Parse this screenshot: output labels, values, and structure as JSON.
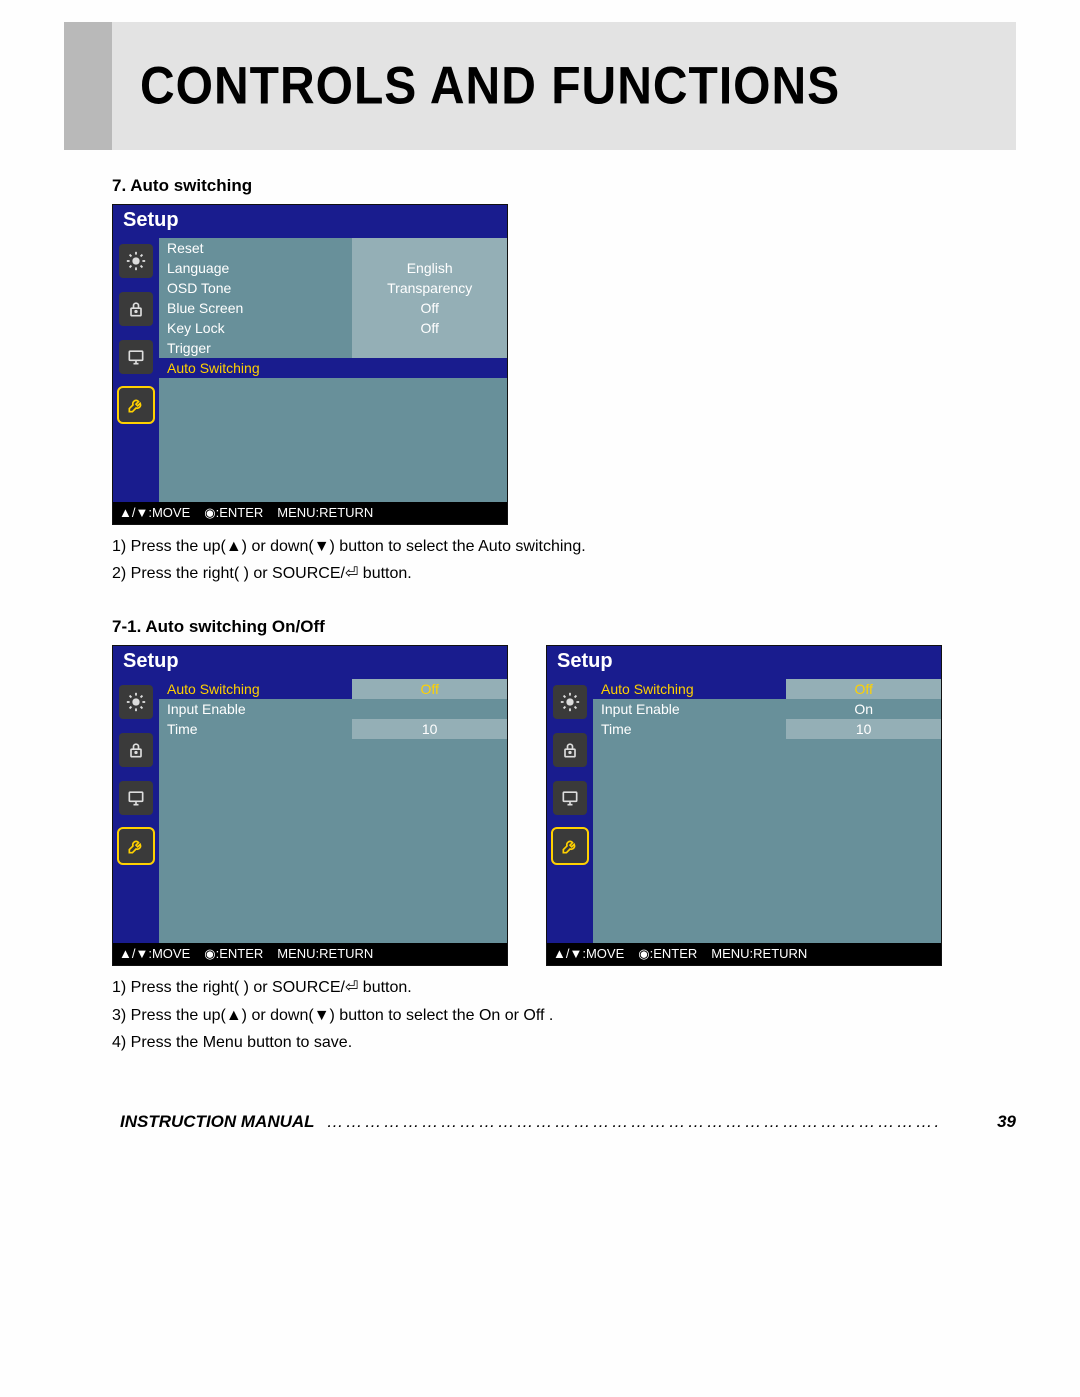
{
  "header": {
    "title": "CONTROLS AND FUNCTIONS"
  },
  "section1": {
    "heading": "7. Auto switching",
    "instructions": [
      "1) Press the up(▲) or down(▼) button to select the Auto switching.",
      "2) Press the right(  ) or SOURCE/⏎   button."
    ]
  },
  "section2": {
    "heading": "7-1. Auto switching On/Off",
    "instructions": [
      "1) Press the right(  ) or SOURCE/⏎   button.",
      "3) Press the up(▲) or down(▼) button to select the On or Off .",
      "4) Press the Menu button to save."
    ]
  },
  "osd_common": {
    "title": "Setup",
    "footer": {
      "move": "▲/▼:MOVE",
      "enter": "◉:ENTER",
      "return": "MENU:RETURN"
    },
    "icons": [
      "brightness",
      "lock",
      "display",
      "tools"
    ]
  },
  "osd1": {
    "items": [
      {
        "label": "Reset",
        "value": ""
      },
      {
        "label": "Language",
        "value": "English"
      },
      {
        "label": "OSD Tone",
        "value": "Transparency"
      },
      {
        "label": "Blue Screen",
        "value": "Off"
      },
      {
        "label": "Key Lock",
        "value": "Off"
      },
      {
        "label": "Trigger",
        "value": ""
      }
    ],
    "highlight": {
      "label": "Auto Switching",
      "value": ""
    }
  },
  "osd2": {
    "highlight": {
      "label": "Auto Switching",
      "value": "Off"
    },
    "items": [
      {
        "label": "Input Enable",
        "value": ""
      },
      {
        "label": "Time",
        "value": "10"
      }
    ]
  },
  "osd3": {
    "highlight": {
      "label": "Auto Switching",
      "value": "Off"
    },
    "items": [
      {
        "label": "Input Enable",
        "value": "On"
      },
      {
        "label": "Time",
        "value": "10"
      }
    ]
  },
  "footer": {
    "label": "INSTRUCTION MANUAL",
    "page": "39"
  },
  "colors": {
    "dark_blue": "#191c8e",
    "teal": "#68909a",
    "light_teal": "#94afb6",
    "yellow": "#ffd100",
    "header_gray": "#e3e3e3",
    "block_gray": "#b9b9b9"
  }
}
